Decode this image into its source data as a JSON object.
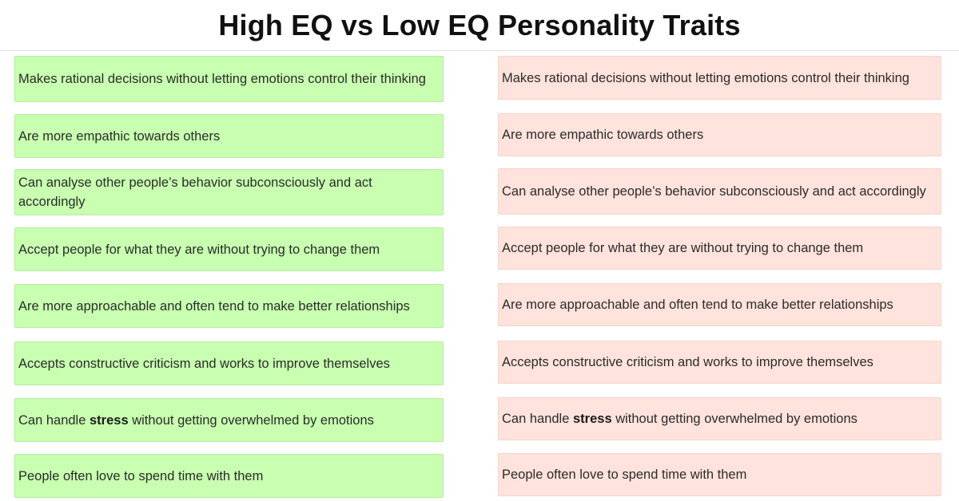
{
  "header": {
    "title": "High EQ vs Low EQ Personality Traits"
  },
  "left_column": {
    "items": [
      {
        "text": "Makes rational decisions without letting emotions control their thinking"
      },
      {
        "text": "Are more empathic towards others"
      },
      {
        "text": "Can analyse other people’s behavior subconsciously and act accordingly"
      },
      {
        "text": "Accept people for what they are without trying to change them"
      },
      {
        "text": "Are more approachable and often tend to make better relationships"
      },
      {
        "text": "Accepts constructive criticism and works to improve themselves"
      },
      {
        "before": "Can handle ",
        "bold": "stress",
        "after": " without getting overwhelmed by emotions"
      },
      {
        "text": "People often love to spend time with them"
      }
    ]
  },
  "right_column": {
    "items": [
      {
        "text": "Makes rational decisions without letting emotions control their thinking"
      },
      {
        "text": "Are more empathic towards others"
      },
      {
        "text": "Can analyse other people’s behavior subconsciously and act accordingly"
      },
      {
        "text": "Accept people for what they are without trying to change them"
      },
      {
        "text": "Are more approachable and often tend to make better relationships"
      },
      {
        "text": "Accepts constructive criticism and works to improve themselves"
      },
      {
        "before": "Can handle ",
        "bold": "stress",
        "after": " without getting overwhelmed by emotions"
      },
      {
        "text": "People often love to spend time with them"
      }
    ]
  },
  "colors": {
    "high_eq_card": "#c8ffb0",
    "low_eq_card": "#ffe3dc"
  }
}
